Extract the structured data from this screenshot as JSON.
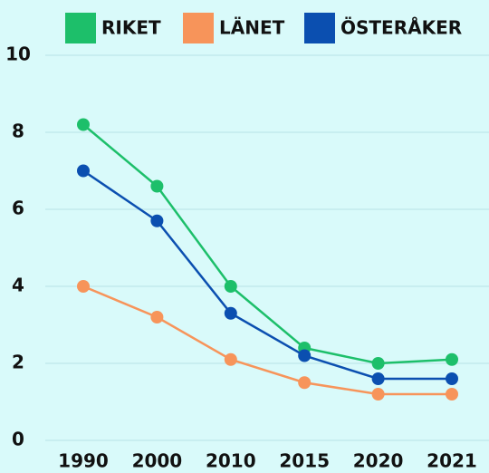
{
  "chart_data": {
    "type": "line",
    "categories": [
      "1990",
      "2000",
      "2010",
      "2015",
      "2020",
      "2021"
    ],
    "series": [
      {
        "name": "RIKET",
        "color": "#1dbf6a",
        "values": [
          8.2,
          6.6,
          4.0,
          2.4,
          2.0,
          2.1
        ]
      },
      {
        "name": "LÄNET",
        "color": "#f7945a",
        "values": [
          4.0,
          3.2,
          2.1,
          1.5,
          1.2,
          1.2
        ]
      },
      {
        "name": "ÖSTERÅKER",
        "color": "#0b4fb0",
        "values": [
          7.0,
          5.7,
          3.3,
          2.2,
          1.6,
          1.6
        ]
      }
    ],
    "ylim": [
      0,
      10
    ],
    "yticks": [
      0,
      2,
      4,
      6,
      8,
      10
    ],
    "grid": true,
    "legend": "top"
  }
}
